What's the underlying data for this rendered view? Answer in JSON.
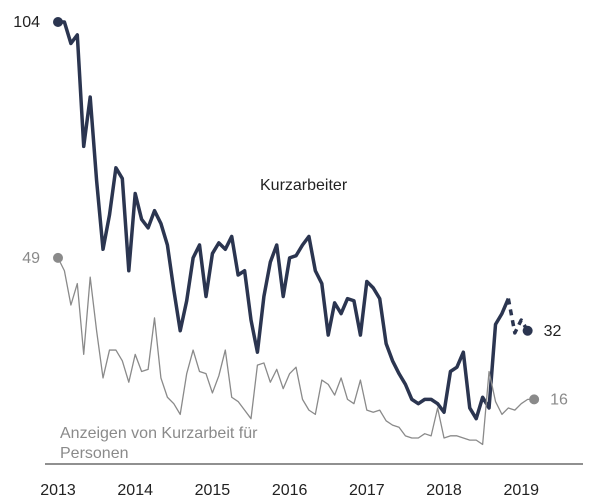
{
  "chart_data": {
    "type": "line",
    "xticks": [
      2013,
      2014,
      2015,
      2016,
      2017,
      2018,
      2019
    ],
    "xlim": [
      2013,
      2019.8
    ],
    "ylim": [
      0,
      104
    ],
    "x": [
      2013.0,
      2013.083,
      2013.167,
      2013.25,
      2013.333,
      2013.417,
      2013.5,
      2013.583,
      2013.667,
      2013.75,
      2013.833,
      2013.917,
      2014.0,
      2014.083,
      2014.167,
      2014.25,
      2014.333,
      2014.417,
      2014.5,
      2014.583,
      2014.667,
      2014.75,
      2014.833,
      2014.917,
      2015.0,
      2015.083,
      2015.167,
      2015.25,
      2015.333,
      2015.417,
      2015.5,
      2015.583,
      2015.667,
      2015.75,
      2015.833,
      2015.917,
      2016.0,
      2016.083,
      2016.167,
      2016.25,
      2016.333,
      2016.417,
      2016.5,
      2016.583,
      2016.667,
      2016.75,
      2016.833,
      2016.917,
      2017.0,
      2017.083,
      2017.167,
      2017.25,
      2017.333,
      2017.417,
      2017.5,
      2017.583,
      2017.667,
      2017.75,
      2017.833,
      2017.917,
      2018.0,
      2018.083,
      2018.167,
      2018.25,
      2018.333,
      2018.417,
      2018.5,
      2018.583,
      2018.667,
      2018.75,
      2018.833,
      2018.917,
      2019.0,
      2019.083,
      2019.167
    ],
    "series": [
      {
        "name": "Kurzarbeiter",
        "color": "#2b3550",
        "dash_from": 70,
        "values": [
          104,
          104,
          99,
          101,
          75,
          86.5,
          67,
          51,
          59,
          70,
          67.5,
          46,
          64,
          58,
          56,
          60,
          57,
          52,
          41.5,
          32,
          39,
          49,
          52,
          40,
          50,
          52.5,
          51,
          54,
          45,
          46,
          34.5,
          27,
          40,
          48,
          52,
          40,
          49,
          49.5,
          52,
          54,
          46,
          43,
          31,
          38.5,
          36,
          39.5,
          39,
          31,
          43.5,
          42,
          39.5,
          29,
          25,
          22,
          19.5,
          16,
          15,
          16,
          16,
          15,
          13,
          22.5,
          23.5,
          27,
          14,
          11.5,
          16.5,
          14,
          33.5,
          36,
          39.5,
          31.5,
          34.5,
          32,
          null
        ]
      },
      {
        "name": "Anzeigen von Kurzarbeit für Personen",
        "color": "#8a8a8a",
        "values": [
          49,
          46,
          38,
          43,
          26.5,
          44.5,
          32,
          21,
          27.5,
          27.5,
          25,
          20,
          26.5,
          22.5,
          23,
          35,
          21,
          16.5,
          15,
          12.5,
          22,
          27.5,
          22.5,
          22,
          17.5,
          21.5,
          27.5,
          16.5,
          15.5,
          13.5,
          11.5,
          24,
          24.5,
          20,
          23,
          18.5,
          22,
          23.5,
          16,
          13.5,
          12.5,
          20.5,
          19.5,
          17,
          21,
          16,
          15,
          20.5,
          13.5,
          13,
          13.5,
          11,
          10,
          9.5,
          7.5,
          7,
          7,
          8,
          7.5,
          14,
          7,
          7.5,
          7.5,
          7,
          6.5,
          6.5,
          5.5,
          22.5,
          15.5,
          12.5,
          14,
          13.5,
          15,
          16,
          16
        ]
      }
    ]
  }
}
